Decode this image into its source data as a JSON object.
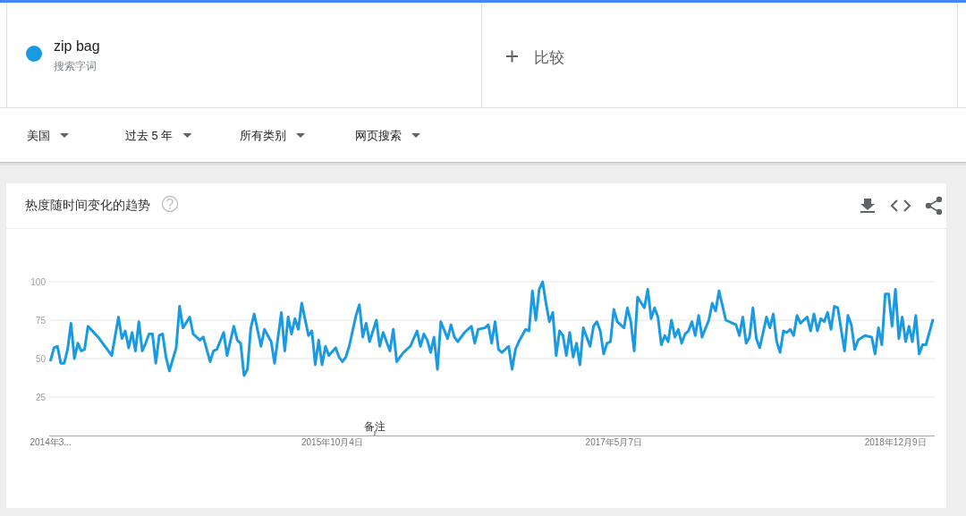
{
  "chart_data": {
    "type": "line",
    "title": "热度随时间变化的趋势",
    "x": [
      "2014-03-02",
      "2014-03-09",
      "2014-03-16",
      "2014-03-23",
      "2014-03-30",
      "2014-04-06",
      "2014-04-13",
      "2014-04-20",
      "2014-04-27",
      "2014-05-04",
      "2014-05-11",
      "2014-05-18",
      "2014-06-08",
      "2014-06-29",
      "2014-07-06",
      "2014-07-20",
      "2014-07-27",
      "2014-08-03",
      "2014-08-10",
      "2014-08-17",
      "2014-08-24",
      "2014-08-31",
      "2014-09-07",
      "2014-09-14",
      "2014-09-21",
      "2014-09-28",
      "2014-10-05",
      "2014-10-12",
      "2014-10-19",
      "2014-10-26",
      "2014-11-02",
      "2014-11-16",
      "2014-11-23",
      "2014-11-30",
      "2014-12-14",
      "2014-12-21",
      "2015-01-04",
      "2015-01-11",
      "2015-01-25",
      "2015-02-01",
      "2015-02-08",
      "2015-02-22",
      "2015-03-01",
      "2015-03-15",
      "2015-03-22",
      "2015-03-29",
      "2015-04-05",
      "2015-04-12",
      "2015-04-19",
      "2015-04-26",
      "2015-05-10",
      "2015-05-17",
      "2015-05-31",
      "2015-06-07",
      "2015-06-21",
      "2015-06-28",
      "2015-07-05",
      "2015-07-12",
      "2015-07-19",
      "2015-07-26",
      "2015-08-02",
      "2015-08-16",
      "2015-08-23",
      "2015-08-30",
      "2015-09-06",
      "2015-09-13",
      "2015-09-20",
      "2015-09-27",
      "2015-10-11",
      "2015-10-18",
      "2015-10-25",
      "2015-11-01",
      "2015-11-08",
      "2015-11-22",
      "2015-11-29",
      "2015-12-06",
      "2015-12-13",
      "2015-12-20",
      "2016-01-03",
      "2016-01-10",
      "2016-01-17",
      "2016-01-31",
      "2016-02-07",
      "2016-02-14",
      "2016-02-28",
      "2016-03-13",
      "2016-03-27",
      "2016-04-03",
      "2016-04-10",
      "2016-04-17",
      "2016-04-24",
      "2016-05-01",
      "2016-05-08",
      "2016-05-15",
      "2016-05-29",
      "2016-06-05",
      "2016-06-12",
      "2016-06-19",
      "2016-07-03",
      "2016-07-17",
      "2016-07-24",
      "2016-07-31",
      "2016-08-14",
      "2016-08-21",
      "2016-08-28",
      "2016-09-04",
      "2016-09-11",
      "2016-09-18",
      "2016-10-02",
      "2016-10-09",
      "2016-10-16",
      "2016-10-23",
      "2016-11-06",
      "2016-11-13",
      "2016-11-20",
      "2016-11-27",
      "2016-12-04",
      "2016-12-11",
      "2016-12-18",
      "2016-12-25",
      "2017-01-01",
      "2017-01-08",
      "2017-01-15",
      "2017-01-22",
      "2017-01-29",
      "2017-02-05",
      "2017-02-12",
      "2017-02-19",
      "2017-02-26",
      "2017-03-05",
      "2017-03-19",
      "2017-03-26",
      "2017-04-02",
      "2017-04-09",
      "2017-04-16",
      "2017-04-23",
      "2017-04-30",
      "2017-05-07",
      "2017-05-14",
      "2017-05-28",
      "2017-06-04",
      "2017-06-11",
      "2017-06-18",
      "2017-06-25",
      "2017-07-09",
      "2017-07-16",
      "2017-07-23",
      "2017-07-30",
      "2017-08-06",
      "2017-08-13",
      "2017-08-20",
      "2017-08-27",
      "2017-09-03",
      "2017-09-10",
      "2017-09-17",
      "2017-09-24",
      "2017-10-01",
      "2017-10-08",
      "2017-10-15",
      "2017-10-22",
      "2017-10-29",
      "2017-11-05",
      "2017-11-19",
      "2017-11-26",
      "2017-12-03",
      "2017-12-10",
      "2017-12-24",
      "2018-01-14",
      "2018-01-21",
      "2018-01-28",
      "2018-02-04",
      "2018-02-11",
      "2018-02-18",
      "2018-02-25",
      "2018-03-04",
      "2018-03-18",
      "2018-03-25",
      "2018-04-01",
      "2018-04-08",
      "2018-04-15",
      "2018-04-22",
      "2018-04-29",
      "2018-05-06",
      "2018-05-13",
      "2018-05-20",
      "2018-05-27",
      "2018-06-10",
      "2018-06-17",
      "2018-06-24",
      "2018-07-01",
      "2018-07-08",
      "2018-07-15",
      "2018-07-22",
      "2018-07-29",
      "2018-08-05",
      "2018-08-12",
      "2018-08-26",
      "2018-09-02",
      "2018-09-09",
      "2018-09-16",
      "2018-09-23",
      "2018-10-07",
      "2018-10-21",
      "2018-10-28",
      "2018-11-04",
      "2018-11-11",
      "2018-11-18",
      "2018-11-25",
      "2018-12-02",
      "2018-12-09",
      "2018-12-16",
      "2018-12-23",
      "2018-12-30",
      "2019-01-06",
      "2019-01-13",
      "2019-01-20",
      "2019-01-27",
      "2019-02-03",
      "2019-02-10",
      "2019-02-24"
    ],
    "series": [
      {
        "name": "zip bag",
        "color": "#1a9ae2",
        "values": [
          49,
          57,
          58,
          47,
          47,
          56,
          73,
          50,
          60,
          55,
          56,
          71,
          64,
          55,
          52,
          77,
          63,
          68,
          57,
          67,
          55,
          74,
          55,
          60,
          66,
          66,
          47,
          65,
          66,
          51,
          42,
          57,
          84,
          70,
          77,
          66,
          62,
          64,
          48,
          55,
          56,
          67,
          52,
          71,
          62,
          60,
          39,
          43,
          70,
          79,
          58,
          69,
          61,
          47,
          80,
          55,
          77,
          66,
          76,
          69,
          86,
          65,
          68,
          46,
          62,
          46,
          58,
          52,
          57,
          51,
          48,
          51,
          58,
          78,
          85,
          64,
          73,
          61,
          75,
          58,
          67,
          55,
          69,
          48,
          54,
          58,
          68,
          58,
          66,
          62,
          54,
          64,
          43,
          74,
          63,
          72,
          64,
          61,
          67,
          71,
          60,
          69,
          70,
          72,
          60,
          74,
          56,
          54,
          58,
          43,
          56,
          61,
          69,
          68,
          94,
          75,
          95,
          100,
          86,
          74,
          80,
          52,
          68,
          65,
          52,
          67,
          51,
          60,
          46,
          70,
          58,
          71,
          74,
          68,
          53,
          60,
          61,
          82,
          74,
          70,
          83,
          74,
          55,
          90,
          83,
          95,
          76,
          83,
          77,
          59,
          65,
          61,
          75,
          64,
          69,
          60,
          66,
          68,
          74,
          65,
          78,
          64,
          75,
          86,
          81,
          94,
          75,
          72,
          65,
          77,
          60,
          64,
          83,
          63,
          57,
          77,
          70,
          79,
          61,
          54,
          68,
          67,
          69,
          65,
          78,
          73,
          77,
          68,
          79,
          68,
          76,
          74,
          80,
          69,
          84,
          83,
          55,
          78,
          72,
          56,
          62,
          65,
          64,
          53,
          70,
          59,
          92,
          92,
          71,
          95,
          63,
          77,
          61,
          71,
          61,
          78,
          53,
          59,
          59,
          75
        ]
      }
    ],
    "legend": "top left",
    "annotations": [
      "搜索字词",
      "比较",
      "美国",
      "过去 5 年",
      "所有类别",
      "网页搜索",
      "备注"
    ],
    "xlim": [
      "2014-02-27",
      "2019-02-28"
    ],
    "xticks": [
      {
        "value": "2014-03-02",
        "label": "2014年3..."
      },
      {
        "value": "2015-10-04",
        "label": "2015年10月4日"
      },
      {
        "value": "2017-05-07",
        "label": "2017年5月7日"
      },
      {
        "value": "2018-12-09",
        "label": "2018年12月9日"
      }
    ],
    "ylim": [
      0,
      100
    ],
    "yticks": [
      25,
      50,
      75,
      100
    ],
    "grid": "y",
    "line_style": "solid"
  }
}
